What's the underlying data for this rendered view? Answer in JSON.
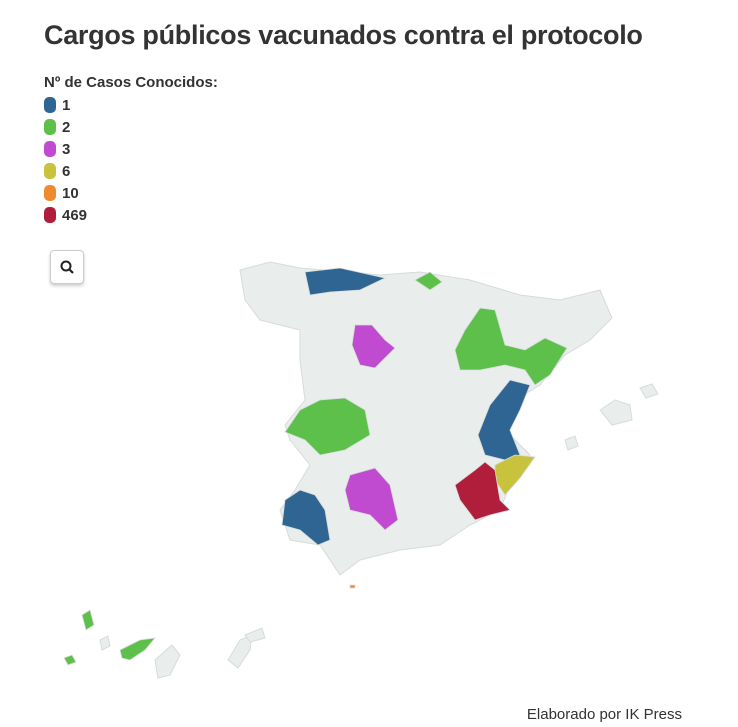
{
  "header": {
    "title": "Cargos públicos vacunados contra el protocolo"
  },
  "legend": {
    "title": "Nº de Casos Conocidos:",
    "items": [
      {
        "label": "1",
        "color": "#2f6593"
      },
      {
        "label": "2",
        "color": "#5cc04a"
      },
      {
        "label": "3",
        "color": "#c04ad0"
      },
      {
        "label": "6",
        "color": "#c8c23c"
      },
      {
        "label": "10",
        "color": "#f08a30"
      },
      {
        "label": "469",
        "color": "#b01e3c"
      }
    ]
  },
  "footer": {
    "credit": "Elaborado por IK Press"
  }
}
